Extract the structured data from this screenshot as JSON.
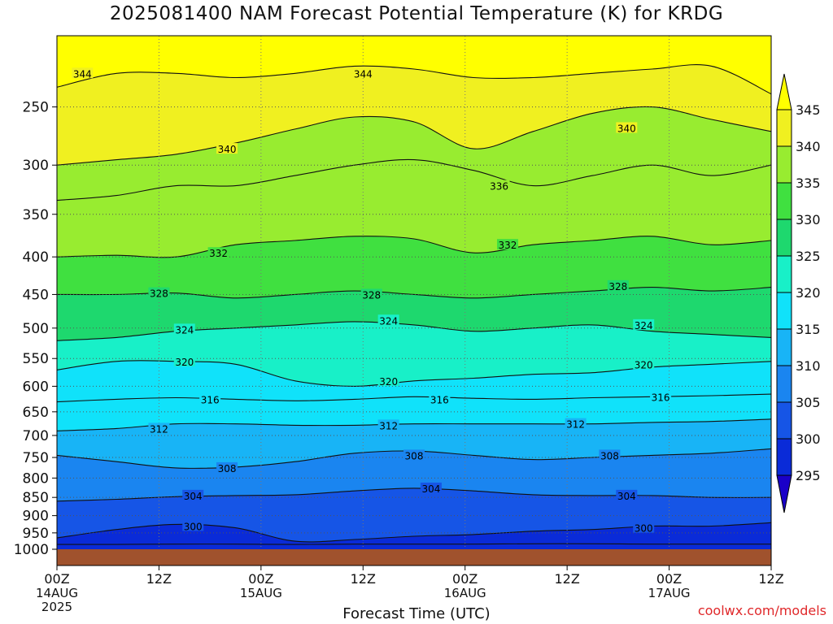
{
  "title": "2025081400 NAM Forecast Potential Temperature (K) for KRDG",
  "credit": "coolwx.com/models",
  "chart_data": {
    "type": "heatmap",
    "title": "2025081400 NAM Forecast Potential Temperature (K) for KRDG",
    "xlabel": "Forecast Time (UTC)",
    "ylabel": "",
    "x_range_hours": [
      0,
      84
    ],
    "y_range_hpa": [
      1000,
      200
    ],
    "y_scale": "log",
    "x_ticks": [
      {
        "hour": 0,
        "label": "00Z",
        "date": "14AUG",
        "year": "2025"
      },
      {
        "hour": 12,
        "label": "12Z"
      },
      {
        "hour": 24,
        "label": "00Z",
        "date": "15AUG"
      },
      {
        "hour": 36,
        "label": "12Z"
      },
      {
        "hour": 48,
        "label": "00Z",
        "date": "16AUG"
      },
      {
        "hour": 60,
        "label": "12Z"
      },
      {
        "hour": 72,
        "label": "00Z",
        "date": "17AUG"
      },
      {
        "hour": 84,
        "label": "12Z"
      }
    ],
    "y_ticks": [
      250,
      300,
      350,
      400,
      450,
      500,
      550,
      600,
      650,
      700,
      750,
      800,
      850,
      900,
      950,
      1000
    ],
    "colorbar": {
      "levels": [
        295,
        300,
        305,
        310,
        315,
        320,
        325,
        330,
        335,
        340,
        345
      ],
      "colors": [
        "#1a00c8",
        "#0a2bd8",
        "#1655e6",
        "#1a85f0",
        "#18b4f6",
        "#10e2fa",
        "#18f0c8",
        "#1ed86e",
        "#40e040",
        "#98ec30",
        "#f0f020",
        "#ffff00"
      ],
      "extend": "both"
    },
    "contour_interval": 4,
    "contours": [
      {
        "level": 296,
        "p": [
          985,
          985,
          984,
          984,
          985,
          984,
          984,
          984,
          983,
          983,
          984,
          984,
          984
        ]
      },
      {
        "level": 300,
        "p": [
          965,
          940,
          925,
          935,
          975,
          970,
          960,
          955,
          945,
          940,
          930,
          930,
          920
        ]
      },
      {
        "level": 304,
        "p": [
          860,
          855,
          848,
          845,
          843,
          833,
          826,
          833,
          843,
          845,
          845,
          850,
          850
        ]
      },
      {
        "level": 308,
        "p": [
          745,
          760,
          775,
          773,
          760,
          740,
          735,
          745,
          755,
          750,
          745,
          740,
          730
        ]
      },
      {
        "level": 312,
        "p": [
          690,
          685,
          675,
          675,
          678,
          678,
          675,
          675,
          675,
          675,
          672,
          670,
          665
        ]
      },
      {
        "level": 316,
        "p": [
          630,
          625,
          622,
          625,
          628,
          625,
          620,
          623,
          625,
          622,
          620,
          618,
          615
        ]
      },
      {
        "level": 320,
        "p": [
          570,
          555,
          555,
          560,
          590,
          600,
          590,
          585,
          578,
          575,
          565,
          560,
          555
        ]
      },
      {
        "level": 324,
        "p": [
          520,
          515,
          505,
          500,
          495,
          490,
          495,
          505,
          500,
          495,
          505,
          510,
          515
        ]
      },
      {
        "level": 328,
        "p": [
          450,
          450,
          448,
          455,
          450,
          445,
          450,
          455,
          450,
          445,
          440,
          445,
          440
        ]
      },
      {
        "level": 332,
        "p": [
          400,
          398,
          400,
          385,
          380,
          375,
          378,
          395,
          385,
          380,
          375,
          385,
          380
        ]
      },
      {
        "level": 336,
        "p": [
          335,
          330,
          320,
          320,
          310,
          300,
          295,
          305,
          320,
          310,
          300,
          310,
          300
        ]
      },
      {
        "level": 340,
        "p": [
          300,
          295,
          290,
          280,
          268,
          258,
          262,
          285,
          270,
          255,
          250,
          260,
          270
        ]
      },
      {
        "level": 344,
        "p": [
          235,
          225,
          225,
          228,
          225,
          220,
          222,
          228,
          228,
          225,
          222,
          220,
          240
        ]
      }
    ],
    "contour_labels": [
      {
        "level": 344,
        "hour": 3,
        "p": 225
      },
      {
        "level": 344,
        "hour": 36,
        "p": 225
      },
      {
        "level": 340,
        "hour": 20,
        "p": 285
      },
      {
        "level": 340,
        "hour": 67,
        "p": 267
      },
      {
        "level": 336,
        "hour": 52,
        "p": 320
      },
      {
        "level": 332,
        "hour": 19,
        "p": 395
      },
      {
        "level": 332,
        "hour": 53,
        "p": 385
      },
      {
        "level": 328,
        "hour": 12,
        "p": 448
      },
      {
        "level": 328,
        "hour": 37,
        "p": 450
      },
      {
        "level": 328,
        "hour": 66,
        "p": 438
      },
      {
        "level": 324,
        "hour": 15,
        "p": 502
      },
      {
        "level": 324,
        "hour": 39,
        "p": 488
      },
      {
        "level": 324,
        "hour": 69,
        "p": 495
      },
      {
        "level": 320,
        "hour": 15,
        "p": 555
      },
      {
        "level": 320,
        "hour": 39,
        "p": 590
      },
      {
        "level": 320,
        "hour": 69,
        "p": 560
      },
      {
        "level": 316,
        "hour": 18,
        "p": 625
      },
      {
        "level": 316,
        "hour": 45,
        "p": 625
      },
      {
        "level": 316,
        "hour": 71,
        "p": 620
      },
      {
        "level": 312,
        "hour": 12,
        "p": 685
      },
      {
        "level": 312,
        "hour": 39,
        "p": 678
      },
      {
        "level": 312,
        "hour": 61,
        "p": 675
      },
      {
        "level": 308,
        "hour": 20,
        "p": 775
      },
      {
        "level": 308,
        "hour": 42,
        "p": 745
      },
      {
        "level": 308,
        "hour": 65,
        "p": 745
      },
      {
        "level": 304,
        "hour": 16,
        "p": 845
      },
      {
        "level": 304,
        "hour": 44,
        "p": 826
      },
      {
        "level": 304,
        "hour": 67,
        "p": 845
      },
      {
        "level": 300,
        "hour": 16,
        "p": 930
      },
      {
        "level": 300,
        "hour": 69,
        "p": 935
      }
    ]
  }
}
